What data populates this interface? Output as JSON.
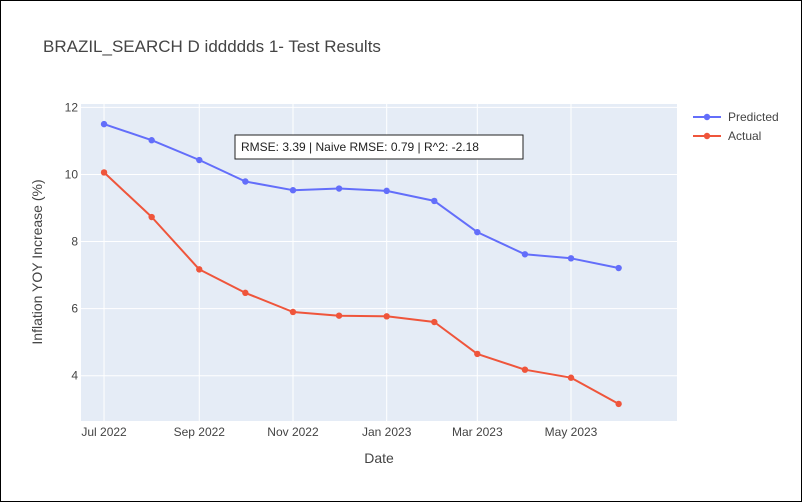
{
  "chart_data": {
    "type": "line",
    "title": "BRAZIL_SEARCH D iddddds 1- Test Results",
    "xlabel": "Date",
    "ylabel": "Inflation YOY Increase (%)",
    "x": [
      "2022-07-01",
      "2022-08-01",
      "2022-09-01",
      "2022-10-01",
      "2022-11-01",
      "2022-12-01",
      "2023-01-01",
      "2023-02-01",
      "2023-03-01",
      "2023-04-01",
      "2023-05-01",
      "2023-06-01"
    ],
    "x_tick_values": [
      "2022-07-01",
      "2022-09-01",
      "2022-11-01",
      "2023-01-01",
      "2023-03-01",
      "2023-05-01"
    ],
    "x_tick_labels": [
      "Jul 2022",
      "Sep 2022",
      "Nov 2022",
      "Jan 2023",
      "Mar 2023",
      "May 2023"
    ],
    "xlim": [
      "2022-06-16",
      "2023-07-09"
    ],
    "ylim": [
      2.65,
      12.1
    ],
    "y_ticks": [
      4,
      6,
      8,
      10,
      12
    ],
    "grid": true,
    "legend_position": "top-right",
    "series": [
      {
        "name": "Predicted",
        "color": "#636efa",
        "values": [
          11.5,
          11.02,
          10.43,
          9.79,
          9.53,
          9.58,
          9.51,
          9.21,
          8.28,
          7.62,
          7.5,
          7.21
        ]
      },
      {
        "name": "Actual",
        "color": "#ef553b",
        "values": [
          10.06,
          8.73,
          7.17,
          6.47,
          5.9,
          5.79,
          5.77,
          5.6,
          4.65,
          4.18,
          3.94,
          3.16
        ]
      }
    ],
    "annotation": "RMSE: 3.39 | Naive RMSE: 0.79 | R^2: -2.18"
  }
}
